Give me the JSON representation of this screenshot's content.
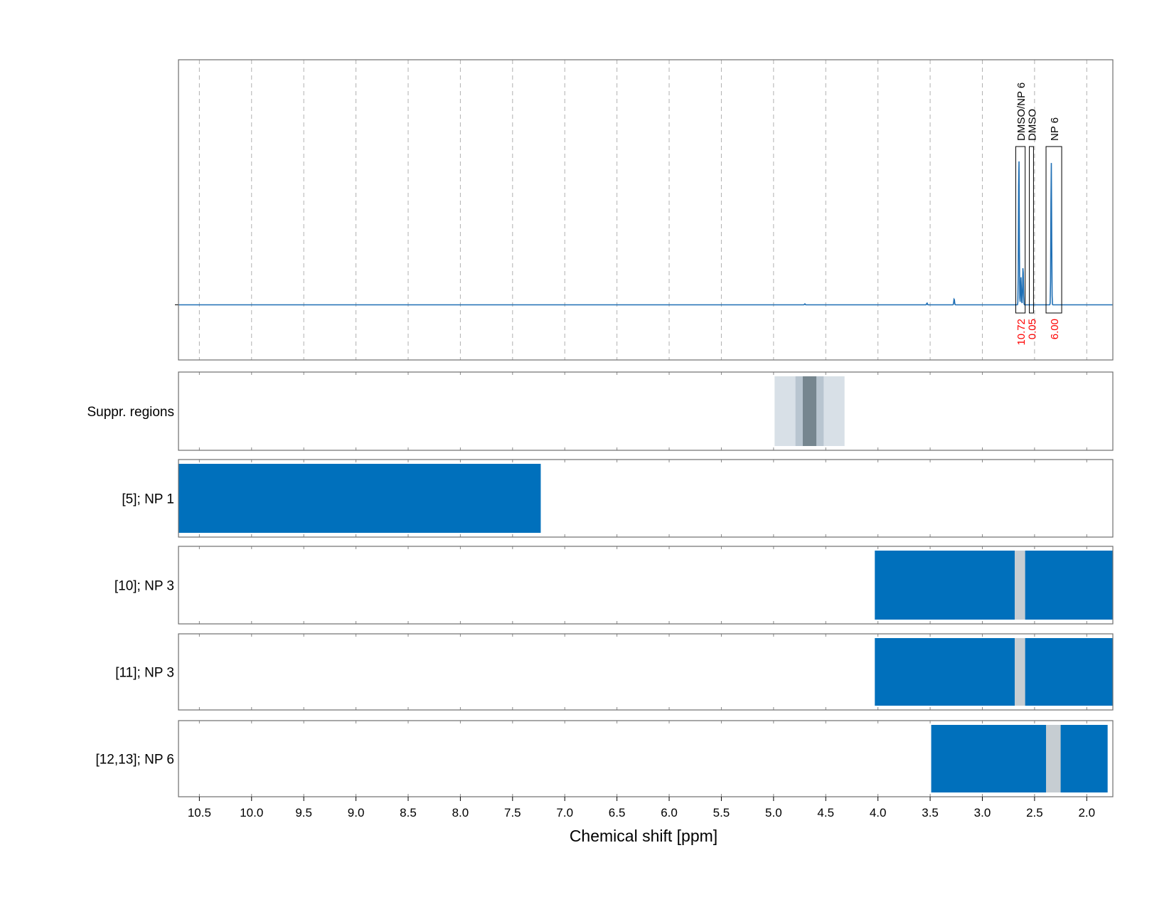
{
  "chart_data": {
    "type": "nmr-spectrum-with-region-tracks",
    "xlabel": "Chemical shift [ppm]",
    "xlim": [
      10.7,
      1.75
    ],
    "x_ticks": [
      10.5,
      10.0,
      9.5,
      9.0,
      8.5,
      8.0,
      7.5,
      7.0,
      6.5,
      6.0,
      5.5,
      5.0,
      4.5,
      4.0,
      3.5,
      3.0,
      2.5,
      2.0
    ],
    "x_tick_labels": [
      "10.5",
      "10.0",
      "9.5",
      "9.0",
      "8.5",
      "8.0",
      "7.5",
      "7.0",
      "6.5",
      "6.0",
      "5.5",
      "5.0",
      "4.5",
      "4.0",
      "3.5",
      "3.0",
      "2.5",
      "2.0"
    ],
    "spectrum": {
      "color": "#1f6fb5",
      "baseline": 0,
      "peaks": [
        {
          "x": 2.65,
          "y": 1.0
        },
        {
          "x": 2.63,
          "y": 0.18
        },
        {
          "x": 2.61,
          "y": 0.26
        },
        {
          "x": 2.34,
          "y": 0.95
        },
        {
          "x": 3.27,
          "y": 0.04
        },
        {
          "x": 3.53,
          "y": 0.012
        },
        {
          "x": 4.7,
          "y": 0.006
        }
      ],
      "ylim": [
        -0.36,
        1.6
      ]
    },
    "annotations": [
      {
        "label": "DMSO/NP 6",
        "x_from": 2.68,
        "x_to": 2.59,
        "integral": "10.72"
      },
      {
        "label": "DMSO",
        "x_from": 2.55,
        "x_to": 2.51,
        "integral": "0.05"
      },
      {
        "label": "NP 6",
        "x_from": 2.39,
        "x_to": 2.24,
        "integral": "6.00"
      }
    ],
    "suppression_regions": {
      "label": "Suppr. regions",
      "bands": [
        {
          "x_from": 4.99,
          "x_to": 4.32,
          "color": "#d8e0e7"
        },
        {
          "x_from": 4.79,
          "x_to": 4.52,
          "color": "#b8c5d0"
        },
        {
          "x_from": 4.72,
          "x_to": 4.59,
          "color": "#76868f"
        }
      ]
    },
    "tracks": [
      {
        "label": "[5]; NP 1",
        "segments": [
          {
            "x_from": 10.7,
            "x_to": 7.23
          }
        ],
        "gaps": []
      },
      {
        "label": "[10]; NP 3",
        "segments": [
          {
            "x_from": 4.03,
            "x_to": 1.75
          }
        ],
        "gaps": [
          {
            "x_from": 2.69,
            "x_to": 2.59
          }
        ]
      },
      {
        "label": "[11]; NP 3",
        "segments": [
          {
            "x_from": 4.03,
            "x_to": 1.75
          }
        ],
        "gaps": [
          {
            "x_from": 2.69,
            "x_to": 2.59
          }
        ]
      },
      {
        "label": "[12,13]; NP 6",
        "segments": [
          {
            "x_from": 3.49,
            "x_to": 1.8
          }
        ],
        "gaps": [
          {
            "x_from": 2.39,
            "x_to": 2.25
          }
        ]
      }
    ],
    "colors": {
      "bar": "#0070bc",
      "gap": "#c6cdd2",
      "integral_text": "#ff0000",
      "grid": "#b0b0b0",
      "frame": "#6f6f6f"
    }
  }
}
